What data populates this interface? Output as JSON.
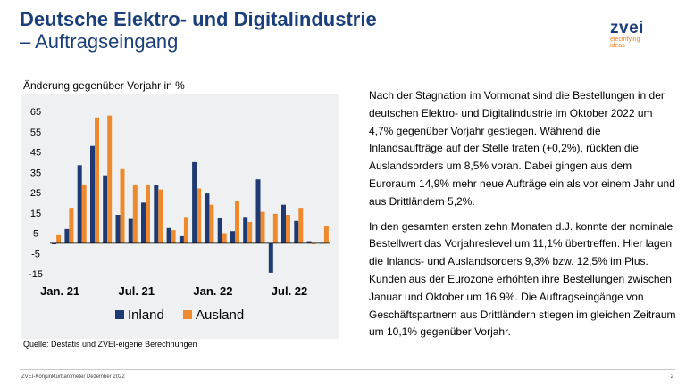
{
  "slide": {
    "title": "Deutsche Elektro- und Digitalindustrie",
    "subtitle": "– Auftragseingang",
    "logo_word": "zvei",
    "logo_tagline_1": "electrifying",
    "logo_tagline_2": "ideas",
    "chart_heading": "Änderung gegenüber Vorjahr in %",
    "source": "Quelle: Destatis und ZVEI-eigene Berechnungen",
    "paragraph_1": "Nach der Stagnation im Vormonat sind die Bestellungen in der deutschen Elektro- und Digitalindustrie im Oktober 2022 um 4,7% gegenüber Vorjahr gestiegen. Während die Inlandsaufträge auf der Stelle traten (+0,2%), rückten die Auslandsorders um 8,5% voran. Dabei gingen aus dem Euroraum 14,9% mehr neue Aufträge ein als vor einem Jahr und aus Drittländern 5,2%.",
    "paragraph_2": "In den gesamten ersten zehn Monaten d.J. konnte der nominale Bestellwert das Vorjahreslevel um 11,1% übertreffen. Hier lagen die Inlands- und Auslandsorders 9,3% bzw. 12,5% im Plus. Kunden aus der Eurozone erhöhten ihre Bestellungen zwischen Januar und Oktober um 16,9%. Die Auftragseingänge von Geschäftspartnern aus Drittländern stiegen im gleichen Zeitraum um 10,1% gegenüber Vorjahr.",
    "footer_left": "ZVEI-Konjunkturbarometer Dezember 2022",
    "footer_right": "2"
  },
  "chart_data": {
    "type": "bar",
    "ylim": [
      -15,
      65
    ],
    "yticks": [
      -15,
      -5,
      5,
      15,
      25,
      35,
      45,
      55,
      65
    ],
    "ytick_labels": [
      "-15",
      "-5",
      "5",
      "15",
      "25",
      "35",
      "45",
      "55",
      "65"
    ],
    "xtick_labels": [
      {
        "label": "Jan. 21",
        "index": 0
      },
      {
        "label": "Jul. 21",
        "index": 6
      },
      {
        "label": "Jan. 22",
        "index": 12
      },
      {
        "label": "Jul. 22",
        "index": 18
      }
    ],
    "period_count": 22,
    "grid": false,
    "legend_position": "bottom",
    "series": [
      {
        "name": "Inland",
        "color": "#1f3a73",
        "values": [
          -0.5,
          7,
          38.5,
          48,
          33.5,
          14,
          12,
          20,
          28.5,
          7.5,
          3.5,
          40,
          24.5,
          12.5,
          6,
          13,
          31.5,
          -14.5,
          19,
          11,
          1,
          0.2
        ]
      },
      {
        "name": "Ausland",
        "color": "#ee8a2e",
        "values": [
          4,
          17.5,
          29,
          62,
          63,
          36.5,
          29,
          29,
          26.5,
          6.5,
          13,
          27,
          19,
          5,
          21,
          10.5,
          15.5,
          14.5,
          14,
          17.5,
          -0.5,
          8.5
        ]
      }
    ]
  }
}
